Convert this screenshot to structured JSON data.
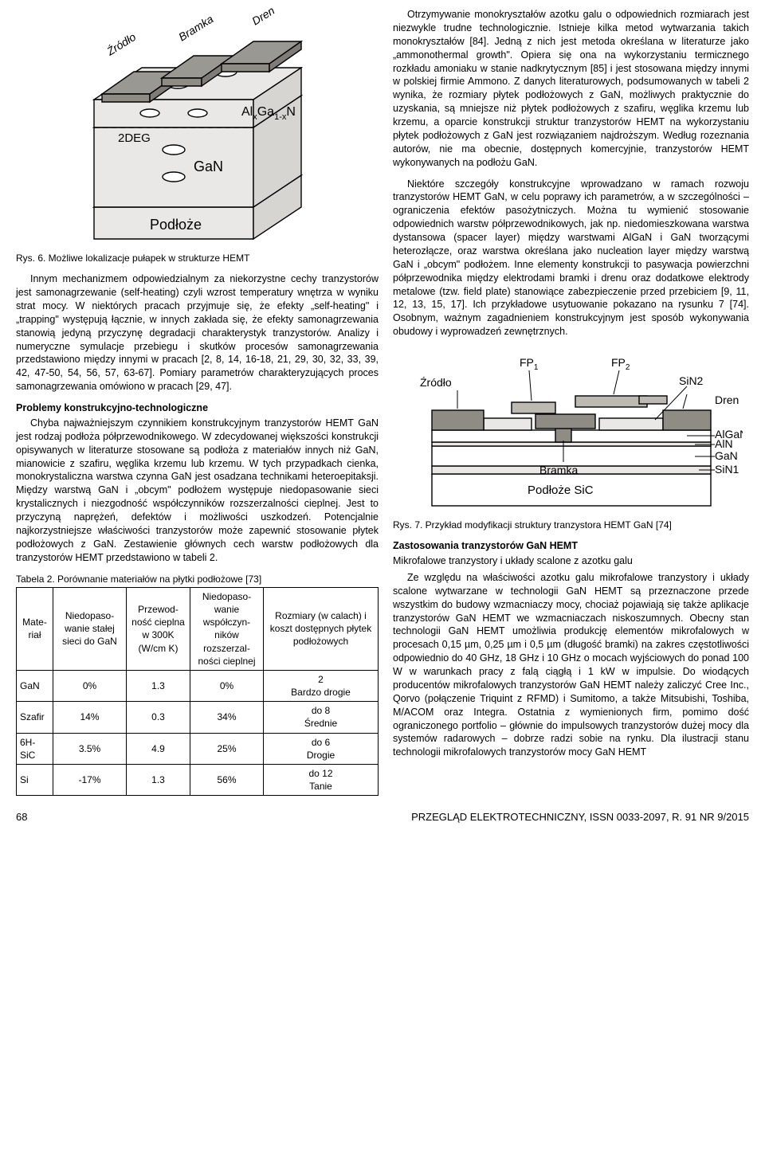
{
  "fig6": {
    "labels": {
      "zrodlo": "Źródło",
      "bramka": "Bramka",
      "dren": "Dren",
      "algax": "Al",
      "algax_sub1": "x",
      "algax2": "Ga",
      "algax_sub2": "1-x",
      "algax3": "N",
      "twodeg": "2DEG",
      "gan": "GaN",
      "podloze": "Podłoże"
    },
    "colors": {
      "block_fill": "#e9e8e6",
      "top_pad": "#9a9893",
      "stroke": "#000000",
      "dash": "#000000"
    },
    "caption": "Rys. 6. Możliwe lokalizacje pułapek w strukturze HEMT"
  },
  "p1": "Innym mechanizmem odpowiedzialnym za niekorzystne cechy tranzystorów jest samonagrzewanie (self-heating) czyli wzrost temperatury wnętrza w wyniku strat mocy. W niektórych pracach przyjmuje się, że efekty „self-heating\" i „trapping\" występują łącznie, w innych zakłada się, że efekty samonagrzewania stanowią jedyną przyczynę degradacji charakterystyk tranzystorów. Analizy i numeryczne symulacje przebiegu i skutków procesów samonagrzewania przedstawiono między innymi w pracach [2, 8, 14, 16-18, 21, 29, 30, 32, 33, 39, 42, 47-50, 54, 56, 57, 63-67]. Pomiary parametrów charakteryzujących proces samonagrzewania omówiono w pracach [29, 47].",
  "sec1_h": "Problemy konstrukcyjno-technologiczne",
  "p2": "Chyba najważniejszym czynnikiem konstrukcyjnym tranzystorów HEMT GaN jest rodzaj podłoża półprzewodnikowego. W zdecydowanej większości konstrukcji opisywanych w literaturze stosowane są podłoża z materiałów innych niż GaN, mianowicie z szafiru, węglika krzemu lub krzemu. W tych przypadkach cienka, monokrystaliczna warstwa czynna GaN jest osadzana technikami heteroepitaksji. Między warstwą GaN i „obcym\" podłożem występuje niedopasowanie sieci krystalicznych i niezgodność współczynników rozszerzalności cieplnej. Jest to przyczyną naprężeń, defektów i możliwości uszkodzeń. Potencjalnie najkorzystniejsze właściwości tranzystorów może zapewnić stosowanie płytek podłożowych z GaN. Zestawienie głównych cech warstw podłożowych dla tranzystorów HEMT przedstawiono w tabeli 2.",
  "table2": {
    "caption": "Tabela 2. Porównanie materiałów na płytki podłożowe [73]",
    "heads": [
      "Mate-riał",
      "Niedopaso-wanie stałej sieci do GaN",
      "Przewod-ność cieplna w 300K (W/cm K)",
      "Niedopaso-wanie współczyn-ników rozszerzal-ności cieplnej",
      "Rozmiary (w calach) i koszt dostępnych płytek podłożowych"
    ],
    "rows": [
      [
        "GaN",
        "0%",
        "1.3",
        "0%",
        "2\nBardzo drogie"
      ],
      [
        "Szafir",
        "14%",
        "0.3",
        "34%",
        "do 8\nŚrednie"
      ],
      [
        "6H-SiC",
        "3.5%",
        "4.9",
        "25%",
        "do 6\nDrogie"
      ],
      [
        "Si",
        "-17%",
        "1.3",
        "56%",
        "do 12\nTanie"
      ]
    ],
    "col_widths": [
      "46px",
      "92px",
      "80px",
      "92px",
      "auto"
    ],
    "border_color": "#000000"
  },
  "p3": "Otrzymywanie monokryształów azotku galu o odpowiednich rozmiarach jest niezwykle trudne technologicznie. Istnieje kilka metod wytwarzania takich monokryształów [84]. Jedną z nich jest metoda określana w literaturze jako „ammonothermal growth\". Opiera się ona na wykorzystaniu termicznego rozkładu amoniaku w stanie nadkrytycznym [85] i jest stosowana między innymi w polskiej firmie Ammono. Z danych literaturowych, podsumowanych w tabeli 2 wynika, że rozmiary płytek podłożowych z GaN, możliwych praktycznie do uzyskania, są mniejsze niż płytek podłożowych z szafiru, węglika krzemu lub krzemu, a oparcie konstrukcji struktur tranzystorów HEMT na wykorzystaniu płytek podłożowych z GaN jest rozwiązaniem najdroższym. Według rozeznania autorów, nie ma obecnie, dostępnych komercyjnie, tranzystorów HEMT wykonywanych na podłożu GaN.",
  "p4": "Niektóre szczegóły konstrukcyjne wprowadzano w ramach rozwoju tranzystorów HEMT GaN, w celu poprawy ich parametrów, a w szczególności – ograniczenia efektów pasożytniczych. Można tu wymienić stosowanie odpowiednich warstw półprzewodnikowych, jak np. niedomieszkowana warstwa dystansowa (spacer layer) między warstwami AlGaN i GaN tworzącymi heterozłącze, oraz warstwa określana jako nucleation layer między warstwą GaN i „obcym\" podłożem. Inne elementy konstrukcji to pasywacja powierzchni półprzewodnika między elektrodami bramki i drenu oraz dodatkowe elektrody metalowe (tzw. field plate) stanowiące zabezpieczenie przed przebiciem [9, 11, 12, 13, 15, 17]. Ich przykładowe usytuowanie pokazano na rysunku 7 [74]. Osobnym, ważnym zagadnieniem konstrukcyjnym jest sposób wykonywania obudowy i wyprowadzeń zewnętrznych.",
  "fig7": {
    "labels": {
      "fp1": "FP",
      "fp1s": "1",
      "fp2": "FP",
      "fp2s": "2",
      "zrodlo": "Źródło",
      "dren": "Dren",
      "sin2": "SiN2",
      "algan": "AlGaN",
      "aln": "AlN",
      "gan": "GaN",
      "sin1": "SiN1",
      "bramka": "Bramka",
      "podloze": "Podłoże SiC"
    },
    "colors": {
      "metal": "#8f8c86",
      "light": "#ffffff",
      "body": "#e9e8e6",
      "stroke": "#000000"
    },
    "caption": "Rys. 7. Przykład modyfikacji struktury tranzystora HEMT GaN [74]"
  },
  "sec2_h": "Zastosowania tranzystorów GaN HEMT",
  "sec2_sub": "Mikrofalowe tranzystory i układy scalone z azotku galu",
  "p5": "Ze względu na właściwości azotku galu mikrofalowe tranzystory i układy scalone wytwarzane w technologii GaN HEMT są przeznaczone przede wszystkim do budowy wzmacniaczy mocy, chociaż pojawiają się także aplikacje tranzystorów GaN HEMT we wzmacniaczach niskoszumnych. Obecny stan technologii GaN HEMT umożliwia produkcję elementów mikrofalowych w procesach 0,15 µm, 0,25 µm i 0,5 µm (długość bramki) na zakres częstotliwości odpowiednio do 40 GHz, 18 GHz i 10 GHz o mocach wyjściowych do ponad 100 W w warunkach pracy z falą ciągłą i 1 kW w impulsie. Do wiodących producentów mikrofalowych tranzystorów GaN HEMT należy zaliczyć Cree Inc., Qorvo (połączenie Triquint z RFMD) i Sumitomo, a także Mitsubishi, Toshiba, M/ACOM oraz Integra. Ostatnia z wymienionych firm, pomimo dość ograniczonego portfolio – głównie do impulsowych tranzystorów dużej mocy dla systemów radarowych – dobrze radzi sobie na rynku. Dla ilustracji stanu technologii mikrofalowych tranzystorów mocy GaN HEMT",
  "footer": {
    "page": "68",
    "journal": "PRZEGLĄD ELEKTROTECHNICZNY, ISSN 0033-2097, R. 91 NR 9/2015"
  }
}
